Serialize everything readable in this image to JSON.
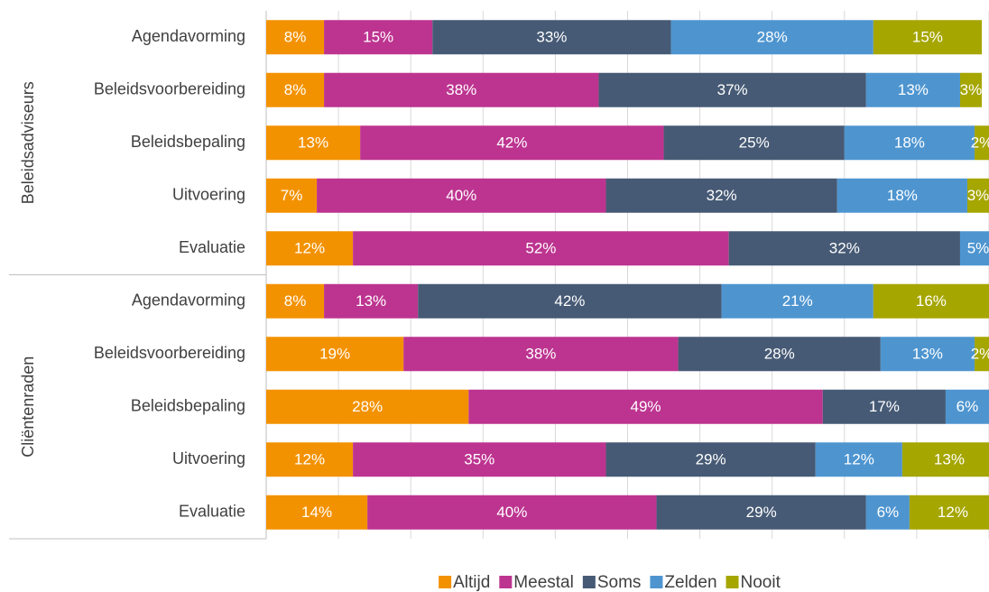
{
  "chart_data": {
    "type": "bar",
    "orientation": "horizontal",
    "stacked": true,
    "groups": [
      {
        "name": "Beleidsadviseurs",
        "categories": [
          "Agendavorming",
          "Beleidsvoorbereiding",
          "Beleidsbepaling",
          "Uitvoering",
          "Evaluatie"
        ]
      },
      {
        "name": "Cliëntenraden",
        "categories": [
          "Agendavorming",
          "Beleidsvoorbereiding",
          "Beleidsbepaling",
          "Uitvoering",
          "Evaluatie"
        ]
      }
    ],
    "xlim": [
      0,
      100
    ],
    "xticks": [
      0,
      10,
      20,
      30,
      40,
      50,
      60,
      70,
      80,
      90,
      100
    ],
    "grid": true,
    "legend": "bottom",
    "series": [
      {
        "name": "Altijd",
        "color": "#f39200",
        "values": [
          8,
          8,
          13,
          7,
          12,
          8,
          19,
          28,
          12,
          14
        ],
        "value_labels": [
          "8%",
          "8%",
          "13%",
          "7%",
          "12%",
          "8%",
          "19%",
          "28%",
          "12%",
          "14%"
        ]
      },
      {
        "name": "Meestal",
        "color": "#bd3490",
        "values": [
          15,
          38,
          42,
          40,
          52,
          13,
          38,
          49,
          35,
          40
        ],
        "value_labels": [
          "15%",
          "38%",
          "42%",
          "40%",
          "52%",
          "13%",
          "38%",
          "49%",
          "35%",
          "40%"
        ]
      },
      {
        "name": "Soms",
        "color": "#465a75",
        "values": [
          33,
          37,
          25,
          32,
          32,
          42,
          28,
          17,
          29,
          29
        ],
        "value_labels": [
          "33%",
          "37%",
          "25%",
          "32%",
          "32%",
          "42%",
          "28%",
          "17%",
          "29%",
          "29%"
        ]
      },
      {
        "name": "Zelden",
        "color": "#4e95d0",
        "values": [
          28,
          13,
          18,
          18,
          5,
          21,
          13,
          6,
          12,
          6
        ],
        "value_labels": [
          "28%",
          "13%",
          "18%",
          "18%",
          "5%",
          "21%",
          "13%",
          "6%",
          "12%",
          "6%"
        ]
      },
      {
        "name": "Nooit",
        "color": "#a5a600",
        "values": [
          15,
          3,
          2,
          3,
          null,
          16,
          2,
          null,
          13,
          12
        ],
        "value_labels": [
          "15%",
          "3%",
          "2%",
          "3%",
          null,
          "16%",
          "2%",
          null,
          "13%",
          "12%"
        ]
      }
    ]
  }
}
